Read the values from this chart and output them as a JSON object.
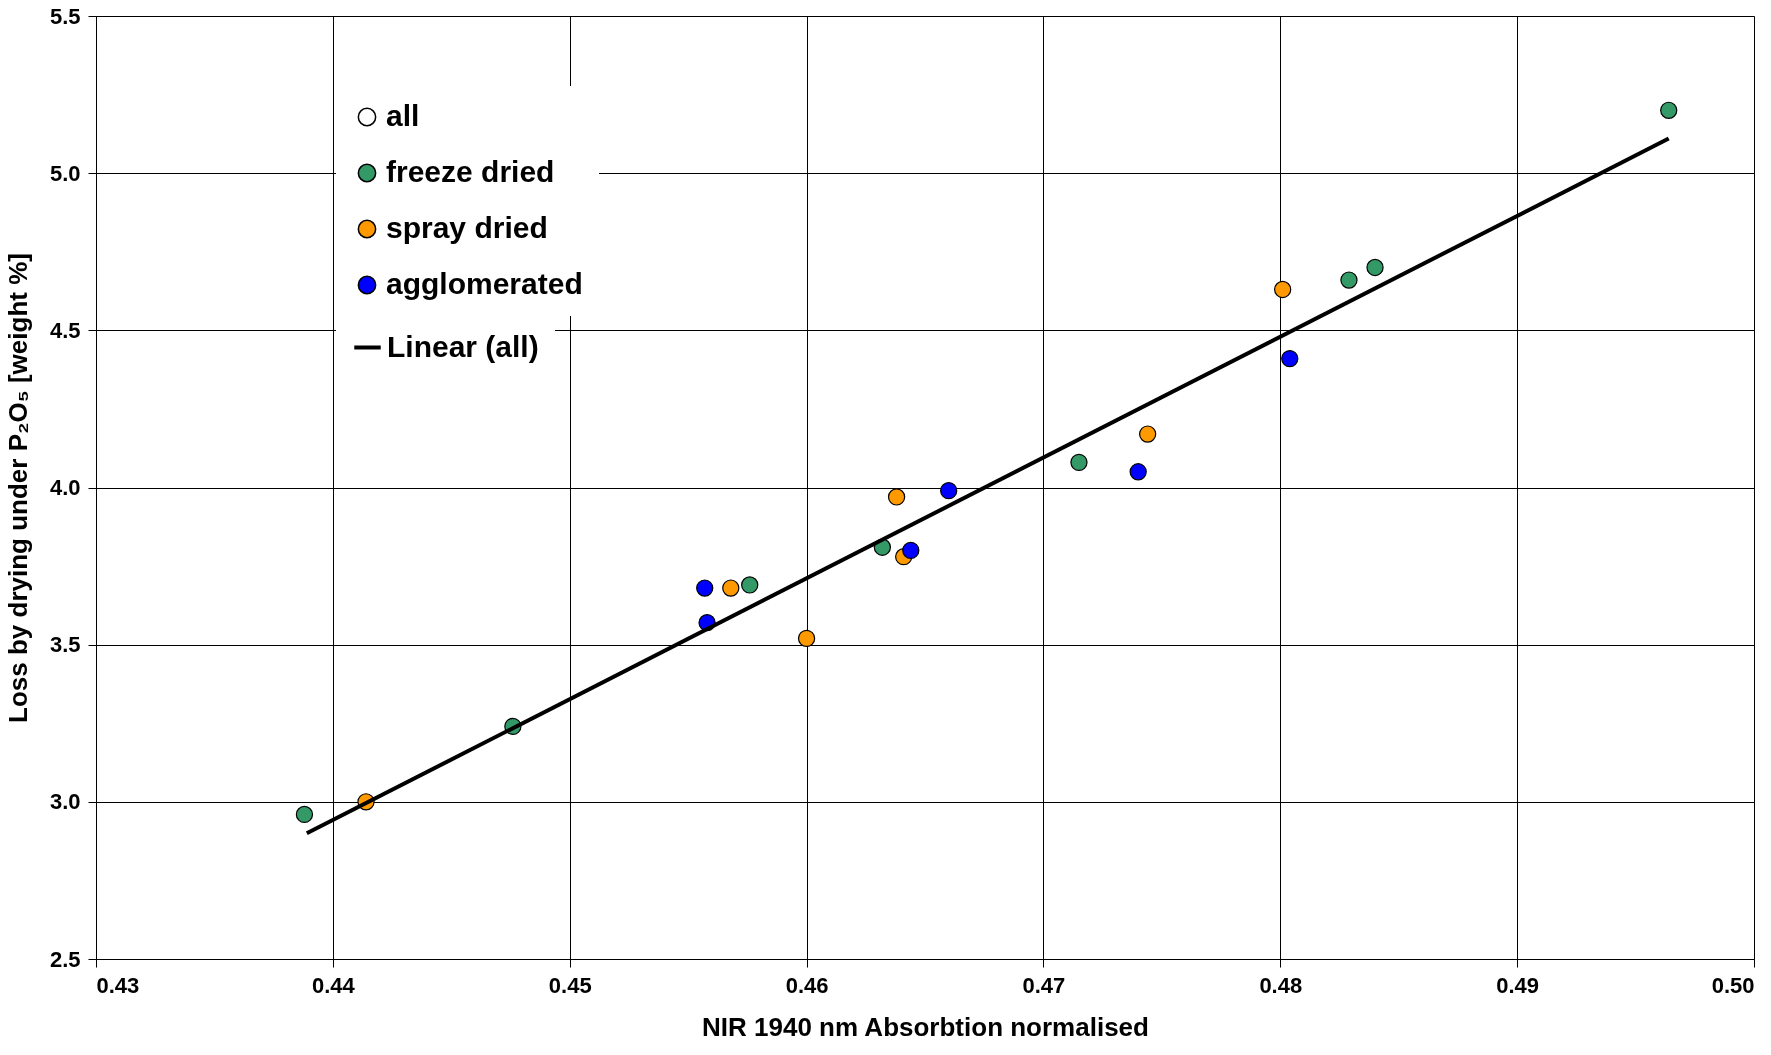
{
  "chart_data": {
    "type": "scatter",
    "xlabel": "NIR 1940 nm Absorbtion normalised",
    "ylabel": "Loss by drying under P₂O₅ [weight %]",
    "xlim": [
      0.43,
      0.5
    ],
    "xticks": [
      {
        "value": 0.43,
        "label": "0.43"
      },
      {
        "value": 0.44,
        "label": "0.44"
      },
      {
        "value": 0.45,
        "label": "0.45"
      },
      {
        "value": 0.46,
        "label": "0.46"
      },
      {
        "value": 0.47,
        "label": "0.47"
      },
      {
        "value": 0.48,
        "label": "0.48"
      },
      {
        "value": 0.49,
        "label": "0.49"
      },
      {
        "value": 0.5,
        "label": "0.50"
      }
    ],
    "ylim": [
      2.5,
      5.5
    ],
    "yticks": [
      2.5,
      {
        "value": 3,
        "label": "3.0"
      },
      3.5,
      {
        "value": 4,
        "label": "4.0"
      },
      4.5,
      {
        "value": 5,
        "label": "5.0"
      },
      5.5
    ],
    "grid": true,
    "legend": "top left",
    "marker": "circle",
    "series": [
      {
        "name": "all",
        "color": "#ffffff"
      },
      {
        "name": "freeze dried",
        "color": "#339966",
        "x": [
          0.4388,
          0.4476,
          0.4576,
          0.4632,
          0.4715,
          0.4829,
          0.484,
          0.4964
        ],
        "values": [
          2.96,
          3.24,
          3.69,
          3.81,
          4.08,
          4.66,
          4.7,
          5.2
        ]
      },
      {
        "name": "spray dried",
        "color": "#ff9900",
        "x": [
          0.4414,
          0.4568,
          0.46,
          0.4638,
          0.4641,
          0.4744,
          0.4801
        ],
        "values": [
          3.0,
          3.68,
          3.52,
          3.97,
          3.78,
          4.17,
          4.63
        ]
      },
      {
        "name": "agglomerated",
        "color": "#0000ff",
        "x": [
          0.4557,
          0.4558,
          0.4644,
          0.466,
          0.474,
          0.4804
        ],
        "values": [
          3.68,
          3.57,
          3.8,
          3.99,
          4.05,
          4.41
        ]
      },
      {
        "name": "Linear (all)",
        "type": "line",
        "color": "#000000",
        "line_style": "solid",
        "marker": "none",
        "x": [
          0.4389,
          0.4964
        ],
        "values": [
          2.9,
          5.11
        ]
      }
    ]
  }
}
